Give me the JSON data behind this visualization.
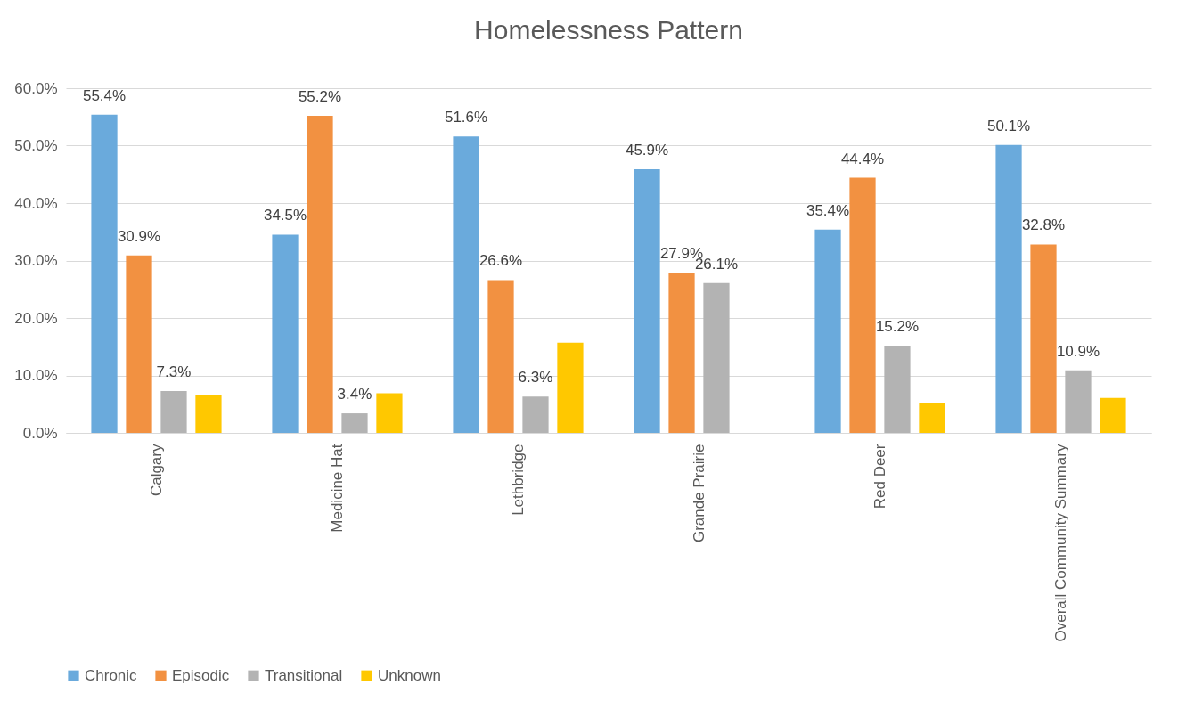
{
  "chart_data": {
    "type": "bar",
    "title": "Homelessness Pattern",
    "categories": [
      "Calgary",
      "Medicine Hat",
      "Lethbridge",
      "Grande Prairie",
      "Red Deer",
      "Overall Community Summary"
    ],
    "series": [
      {
        "name": "Chronic",
        "color": "#6aaadc",
        "values": [
          55.4,
          34.5,
          51.6,
          45.9,
          35.4,
          50.1
        ],
        "value_labels": [
          "55.4%",
          "34.5%",
          "51.6%",
          "45.9%",
          "35.4%",
          "50.1%"
        ]
      },
      {
        "name": "Episodic",
        "color": "#f29141",
        "values": [
          30.9,
          55.2,
          26.6,
          27.9,
          44.4,
          32.8
        ],
        "value_labels": [
          "30.9%",
          "55.2%",
          "26.6%",
          "27.9%",
          "44.4%",
          "32.8%"
        ]
      },
      {
        "name": "Transitional",
        "color": "#b3b3b3",
        "values": [
          7.3,
          3.4,
          6.3,
          26.1,
          15.2,
          10.9
        ],
        "value_labels": [
          "7.3%",
          "3.4%",
          "6.3%",
          "26.1%",
          "15.2%",
          "10.9%"
        ]
      },
      {
        "name": "Unknown",
        "color": "#ffc800",
        "values": [
          6.5,
          6.9,
          15.7,
          null,
          5.2,
          6.1
        ]
      }
    ],
    "ylim": [
      0,
      60
    ],
    "yticks": [
      {
        "value": 0,
        "label": "0.0%"
      },
      {
        "value": 10,
        "label": "10.0%"
      },
      {
        "value": 20,
        "label": "20.0%"
      },
      {
        "value": 30,
        "label": "30.0%"
      },
      {
        "value": 40,
        "label": "40.0%"
      },
      {
        "value": 50,
        "label": "50.0%"
      },
      {
        "value": 60,
        "label": "60.0%"
      }
    ],
    "grid": "y",
    "legend": "bottom"
  }
}
